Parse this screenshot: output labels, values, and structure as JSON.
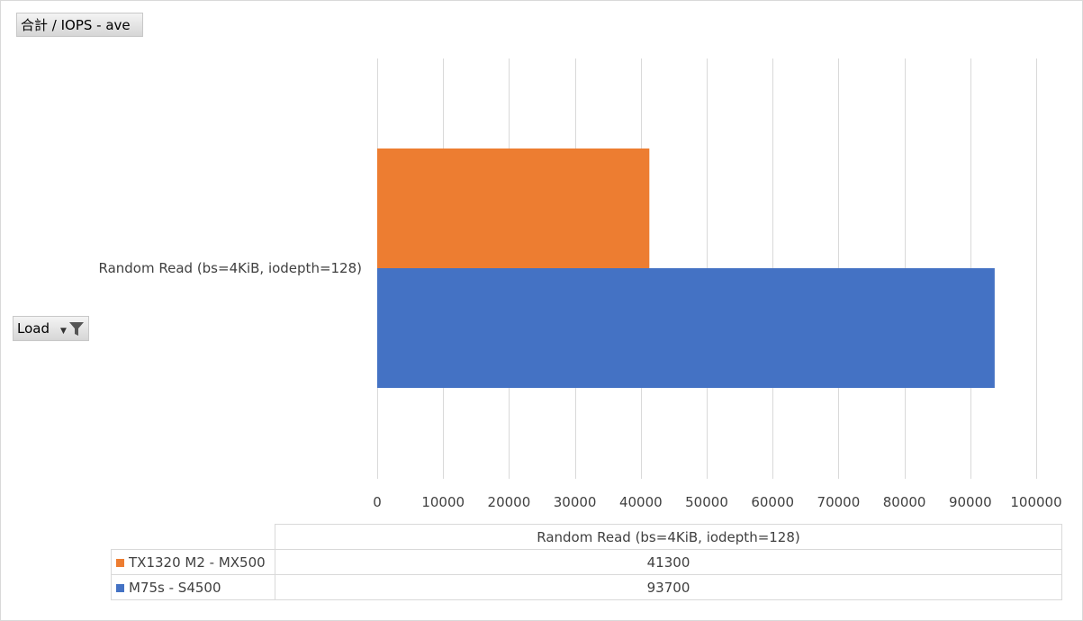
{
  "pivot": {
    "value_field_label": "合計 / IOPS - ave",
    "row_field_label": "Load"
  },
  "chart_data": {
    "type": "bar",
    "orientation": "horizontal",
    "categories": [
      "Random Read (bs=4KiB, iodepth=128)"
    ],
    "series": [
      {
        "name": "TX1320 M2 - MX500",
        "values": [
          41300
        ],
        "color": "#ED7D31"
      },
      {
        "name": "M75s - S4500",
        "values": [
          93700
        ],
        "color": "#4472C4"
      }
    ],
    "xlim": [
      0,
      100000
    ],
    "xticks": [
      0,
      10000,
      20000,
      30000,
      40000,
      50000,
      60000,
      70000,
      80000,
      90000,
      100000
    ],
    "grid": true,
    "gridline_color": "#d9d9d9",
    "legend": "data-table"
  }
}
